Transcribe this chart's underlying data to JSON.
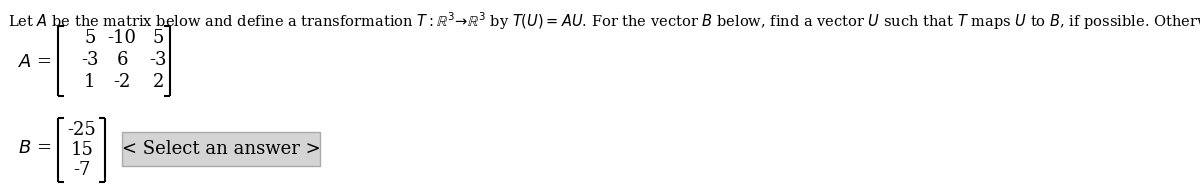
{
  "bg_color": "#ffffff",
  "text_color": "#000000",
  "title": "Let $A$ be the matrix below and define a transformation $T:\\mathbb{R}^3\\!\\rightarrow\\!\\mathbb{R}^3$ by $T(U) = AU$. For the vector $B$ below, find a vector $U$ such that $T$ maps $U$ to $B$, if possible. Otherwise state that there is no such $U$.",
  "A_label": "A =",
  "A_rows": [
    [
      "5",
      "-10",
      "5"
    ],
    [
      "-3",
      "6",
      "-3"
    ],
    [
      "1",
      "-2",
      "2"
    ]
  ],
  "B_label": "B =",
  "B_vals": [
    "-25",
    "15",
    "-7"
  ],
  "button_text": "< Select an answer >",
  "button_bg": "#d4d4d4",
  "title_fontsize": 10.5,
  "label_fontsize": 13,
  "matrix_fontsize": 13,
  "button_fontsize": 13
}
